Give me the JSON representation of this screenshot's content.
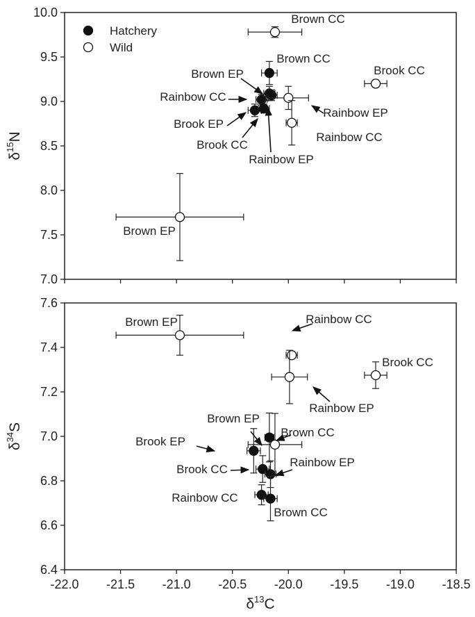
{
  "chart_data": [
    {
      "type": "scatter",
      "panel": "top",
      "ylabel": {
        "base": "δ",
        "sup": "15",
        "main": "N"
      },
      "xlim": [
        -22.0,
        -18.5
      ],
      "ylim": [
        7.0,
        10.0
      ],
      "yticks": [
        "7.0",
        "7.5",
        "8.0",
        "8.5",
        "9.0",
        "9.5",
        "10.0"
      ],
      "legend": {
        "placement": "top-left",
        "entries": [
          "Hatchery",
          "Wild"
        ]
      },
      "series": [
        {
          "name": "Hatchery",
          "marker": "filled-circle",
          "points": [
            {
              "label": "Brown CC",
              "x": -20.17,
              "y": 9.32,
              "xerr": 0.07,
              "yerr": 0.13
            },
            {
              "label": "Brown EP",
              "x": -20.17,
              "y": 9.09,
              "xerr": 0.05,
              "yerr": 0.08
            },
            {
              "label": "Rainbow CC",
              "x": -20.24,
              "y": 9.02,
              "xerr": 0.05,
              "yerr": 0.06
            },
            {
              "label": "Rainbow EP",
              "x": -20.15,
              "y": 9.07,
              "xerr": 0.05,
              "yerr": 0.06
            },
            {
              "label": "Brook EP",
              "x": -20.3,
              "y": 8.9,
              "xerr": 0.06,
              "yerr": 0.07
            },
            {
              "label": "Brook CC",
              "x": -20.22,
              "y": 8.92,
              "xerr": 0.05,
              "yerr": 0.05
            }
          ]
        },
        {
          "name": "Wild",
          "marker": "open-circle",
          "points": [
            {
              "label": "Brown CC",
              "x": -20.12,
              "y": 9.78,
              "xerr": 0.24,
              "yerr": 0.06
            },
            {
              "label": "Brook CC",
              "x": -19.22,
              "y": 9.2,
              "xerr": 0.1,
              "yerr": 0.04
            },
            {
              "label": "Rainbow EP",
              "x": -20.0,
              "y": 9.04,
              "xerr": 0.18,
              "yerr": 0.13
            },
            {
              "label": "Rainbow CC",
              "x": -19.97,
              "y": 8.76,
              "xerr": 0.05,
              "yerr": 0.25
            },
            {
              "label": "Brown EP",
              "x": -20.97,
              "y": 7.7,
              "xerr": 0.57,
              "yerr": 0.49
            }
          ]
        }
      ]
    },
    {
      "type": "scatter",
      "panel": "bottom",
      "xlabel": {
        "base": "δ",
        "sup": "13",
        "main": "C"
      },
      "ylabel": {
        "base": "δ",
        "sup": "34",
        "main": "S"
      },
      "xlim": [
        -22.0,
        -18.5
      ],
      "ylim": [
        6.4,
        7.6
      ],
      "xticks": [
        "-22.0",
        "-21.5",
        "-21.0",
        "-20.5",
        "-20.0",
        "-19.5",
        "-19.0",
        "-18.5"
      ],
      "yticks": [
        "6.4",
        "6.6",
        "6.8",
        "7.0",
        "7.2",
        "7.4",
        "7.6"
      ],
      "series": [
        {
          "name": "Hatchery",
          "marker": "filled-circle",
          "points": [
            {
              "label": "Brown EP",
              "x": -20.17,
              "y": 6.995,
              "xerr": 0.04,
              "yerr": 0.11
            },
            {
              "label": "Brook EP",
              "x": -20.31,
              "y": 6.935,
              "xerr": 0.06,
              "yerr": 0.1
            },
            {
              "label": "Brook CC",
              "x": -20.23,
              "y": 6.853,
              "xerr": 0.06,
              "yerr": 0.06
            },
            {
              "label": "Rainbow EP",
              "x": -20.16,
              "y": 6.83,
              "xerr": 0.05,
              "yerr": 0.06
            },
            {
              "label": "Rainbow CC",
              "x": -20.24,
              "y": 6.737,
              "xerr": 0.06,
              "yerr": 0.045
            },
            {
              "label": "Brown CC",
              "x": -20.16,
              "y": 6.72,
              "xerr": 0.06,
              "yerr": 0.1
            }
          ]
        },
        {
          "name": "Wild",
          "marker": "open-circle",
          "points": [
            {
              "label": "Brown EP",
              "x": -20.97,
              "y": 7.455,
              "xerr": 0.57,
              "yerr": 0.09
            },
            {
              "label": "Rainbow CC",
              "x": -19.97,
              "y": 7.365,
              "xerr": 0.05,
              "yerr": 0.015
            },
            {
              "label": "Brook CC",
              "x": -19.22,
              "y": 7.275,
              "xerr": 0.1,
              "yerr": 0.06
            },
            {
              "label": "Rainbow EP",
              "x": -19.99,
              "y": 7.267,
              "xerr": 0.16,
              "yerr": 0.12
            },
            {
              "label": "Brown CC",
              "x": -20.12,
              "y": 6.963,
              "xerr": 0.24,
              "yerr": 0.14
            }
          ]
        }
      ]
    }
  ]
}
